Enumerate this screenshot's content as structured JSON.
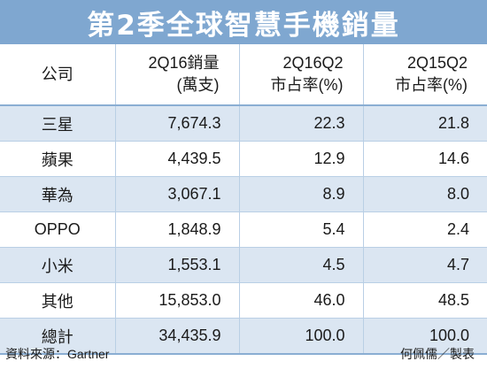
{
  "colors": {
    "title_bg": "#7fa7d0",
    "title_text": "#ffffff",
    "alt_row_bg": "#dbe6f2",
    "rule": "#8aaed3"
  },
  "title": "第2季全球智慧手機銷量",
  "chart_data": {
    "type": "table",
    "title": "第2季全球智慧手機銷量",
    "columns": [
      {
        "line1": "公司",
        "line2": ""
      },
      {
        "line1": "2Q16銷量",
        "line2": "(萬支)"
      },
      {
        "line1": "2Q16Q2",
        "line2": "市占率(%)"
      },
      {
        "line1": "2Q15Q2",
        "line2": "市占率(%)"
      }
    ],
    "rows": [
      {
        "company": "三星",
        "sales": "7,674.3",
        "share_2016": "22.3",
        "share_2015": "21.8"
      },
      {
        "company": "蘋果",
        "sales": "4,439.5",
        "share_2016": "12.9",
        "share_2015": "14.6"
      },
      {
        "company": "華為",
        "sales": "3,067.1",
        "share_2016": "8.9",
        "share_2015": "8.0"
      },
      {
        "company": "OPPO",
        "sales": "1,848.9",
        "share_2016": "5.4",
        "share_2015": "2.4"
      },
      {
        "company": "小米",
        "sales": "1,553.1",
        "share_2016": "4.5",
        "share_2015": "4.7"
      },
      {
        "company": "其他",
        "sales": "15,853.0",
        "share_2016": "46.0",
        "share_2015": "48.5"
      },
      {
        "company": "總計",
        "sales": "34,435.9",
        "share_2016": "100.0",
        "share_2015": "100.0"
      }
    ]
  },
  "footer": {
    "source": "資料來源：Gartner",
    "credit": "何佩儒／製表"
  }
}
